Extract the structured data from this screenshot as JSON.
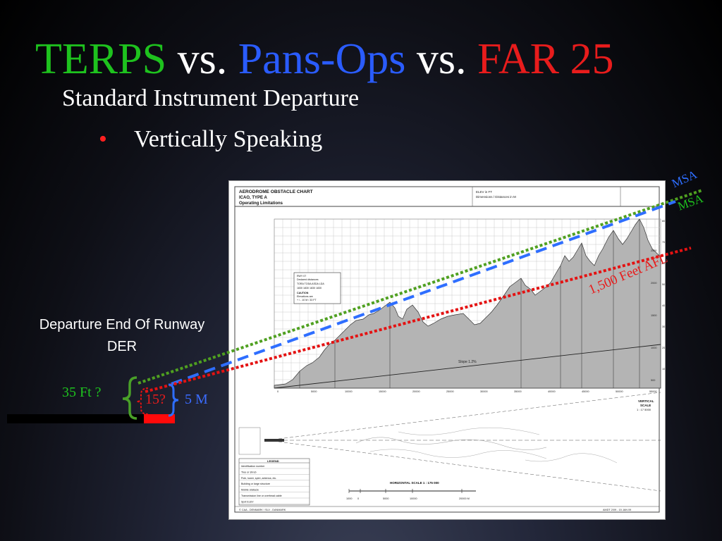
{
  "title": {
    "terps": "TERPS",
    "vs1": " vs. ",
    "pans_ops": "Pans-Ops",
    "vs2": " vs. ",
    "far25": "FAR 25",
    "colors": {
      "terps": "#1ec21e",
      "pans_ops": "#2a5cff",
      "far25": "#e81c1c",
      "vs": "#ffffff"
    }
  },
  "subtitle": "Standard Instrument Departure",
  "bullet": "Vertically Speaking",
  "bullet_color": "#ff2020",
  "der_label": {
    "line1": "Departure End Of Runway",
    "line2": "DER"
  },
  "annotations": {
    "terps_height": "35 Ft ?",
    "far25_height": "15?",
    "pansops_height": "5 M",
    "msa_blue": "MSA",
    "msa_green": "MSA",
    "afl": "1,500 Feet AFL"
  },
  "chart": {
    "header_title1": "AERODROME OBSTACLE CHART",
    "header_title2": "ICAO, TYPE A",
    "header_title3": "Operating Limitations",
    "header_mid1": "ELEV in FT",
    "header_mid2": "Dimensions / Distances in M",
    "box_line1": "RWY 07",
    "box_line2": "Declared distances",
    "box_line3": "TORA  TODA  ASDA  LDA",
    "box_line4": "1830  1830  1830  1830",
    "box_line5": "CAUTION",
    "box_line6": "Elevations are",
    "box_line7": "+ / - 10 M / 33 FT",
    "slope": "Slope 1.2%",
    "vertical_scale1": "VERTICAL",
    "vertical_scale2": "SCALE",
    "vertical_scale3": "1 : 17 5000",
    "horizontal_scale": "HORIZONTAL SCALE 1 : 175 000",
    "legend_title": "LEGEND",
    "legend_items": [
      "Identification number",
      "Tree or shrub",
      "Pole, tower, spire, antenna, etc.",
      "Building or large structure",
      "Mobile obstacle",
      "Transmission line or overhead cable",
      "Spot ELEV"
    ],
    "footer_left": "© CAA - DENMARK / SLV - DANMARK",
    "footer_right": "AMDT 2/09 - 15 JAN 09",
    "ft_ticks": [
      "8000",
      "7000",
      "6000",
      "5000",
      "4000",
      "3000",
      "2000",
      "1000"
    ],
    "m_ticks": [
      "2500",
      "2000",
      "1500",
      "1000",
      "500"
    ],
    "x_ticks": [
      "0",
      "5000",
      "10000",
      "15000",
      "20000",
      "25000",
      "30000",
      "35000",
      "40000",
      "45000",
      "50000",
      "55000"
    ],
    "hscale_ticks": [
      "1000",
      "0",
      "5000",
      "10000",
      "20000 M"
    ]
  }
}
